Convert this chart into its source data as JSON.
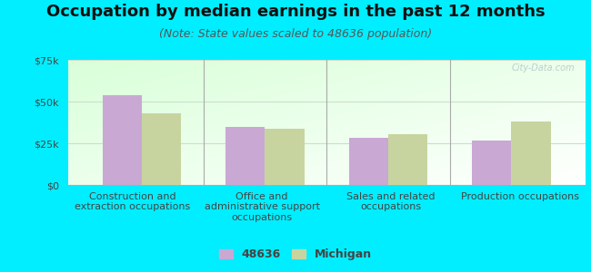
{
  "title": "Occupation by median earnings in the past 12 months",
  "subtitle": "(Note: State values scaled to 48636 population)",
  "categories": [
    "Construction and\nextraction occupations",
    "Office and\nadministrative support\noccupations",
    "Sales and related\noccupations",
    "Production occupations"
  ],
  "values_48636": [
    54000,
    35000,
    28500,
    26500
  ],
  "values_michigan": [
    43000,
    33500,
    30500,
    38000
  ],
  "bar_color_48636": "#c9a8d4",
  "bar_color_michigan": "#c8d4a0",
  "background_outer": "#00eeff",
  "background_chart_top": "#d8f0d8",
  "background_chart_bottom": "#f5fef5",
  "ylim": [
    0,
    75000
  ],
  "yticks": [
    0,
    25000,
    50000,
    75000
  ],
  "ytick_labels": [
    "$0",
    "$25k",
    "$50k",
    "$75k"
  ],
  "legend_label_1": "48636",
  "legend_label_2": "Michigan",
  "title_fontsize": 13,
  "subtitle_fontsize": 9,
  "tick_label_fontsize": 8,
  "cat_label_fontsize": 8,
  "legend_fontsize": 9,
  "grid_color": "#ccddcc",
  "divider_color": "#aaaaaa",
  "text_color": "#444444",
  "watermark": "City-Data.com"
}
